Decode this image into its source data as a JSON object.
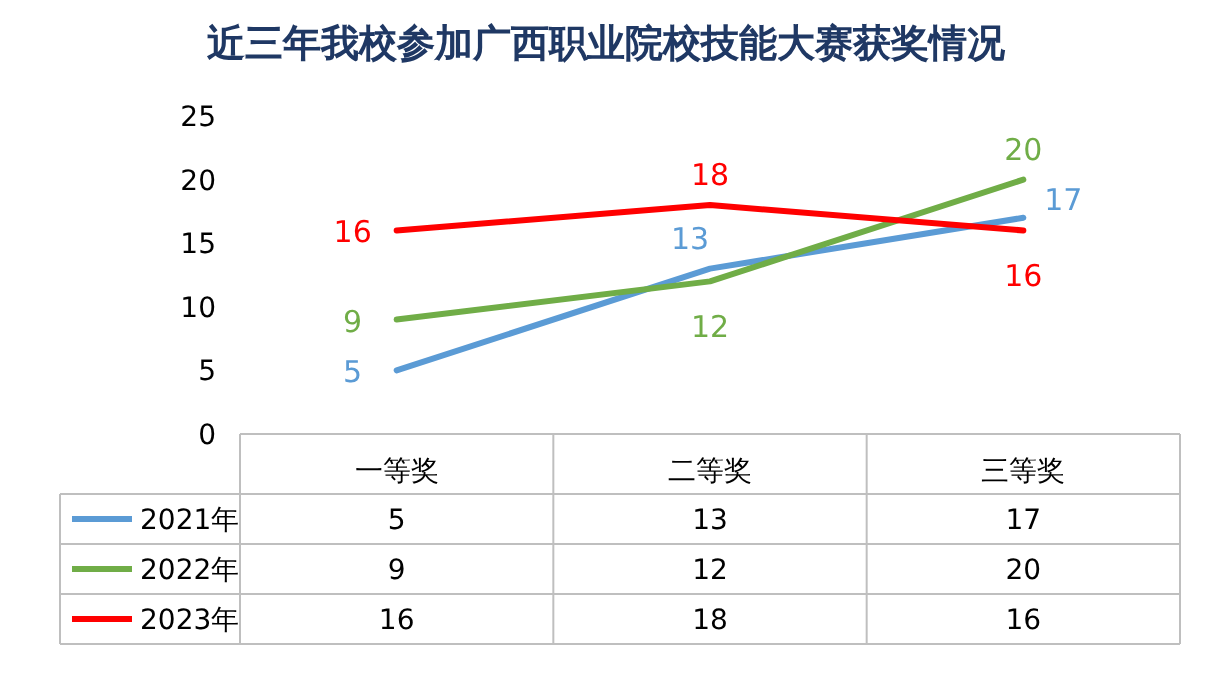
{
  "chart_data": {
    "type": "line",
    "title": "近三年我校参加广西职业院校技能大赛获奖情况",
    "categories": [
      "一等奖",
      "二等奖",
      "三等奖"
    ],
    "series": [
      {
        "name": "2021年",
        "color": "#5b9bd5",
        "values": [
          5,
          13,
          17
        ]
      },
      {
        "name": "2022年",
        "color": "#70ad47",
        "values": [
          9,
          12,
          20
        ]
      },
      {
        "name": "2023年",
        "color": "#ff0000",
        "values": [
          16,
          18,
          16
        ]
      }
    ],
    "annotations": [
      {
        "text": "5",
        "x": "一等奖",
        "y": 5
      },
      {
        "text": "13",
        "x": "二等奖",
        "y": 13
      },
      {
        "text": "17",
        "x": "三等奖",
        "y": 17
      },
      {
        "text": "9",
        "x": "一等奖",
        "y": 9
      },
      {
        "text": "12",
        "x": "二等奖",
        "y": 12
      },
      {
        "text": "20",
        "x": "三等奖",
        "y": 20
      },
      {
        "text": "16",
        "x": "一等奖",
        "y": 16
      },
      {
        "text": "18",
        "x": "二等奖",
        "y": 18
      },
      {
        "text": "16",
        "x": "三等奖",
        "y": 16
      }
    ],
    "ylim": [
      0,
      25
    ],
    "yticks": [
      0,
      5,
      10,
      15,
      20,
      25
    ],
    "data_labels": true,
    "legend": "bottom"
  }
}
